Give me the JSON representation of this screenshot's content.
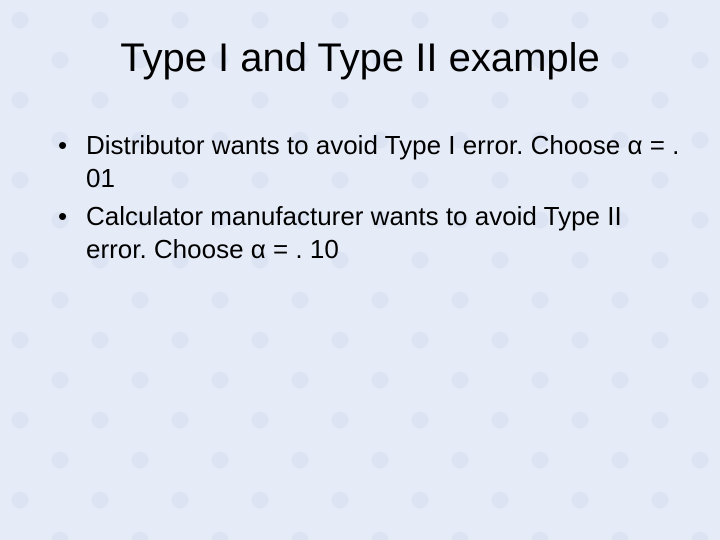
{
  "slide": {
    "title": "Type I and Type II example",
    "bullets": [
      "Distributor wants to avoid Type I error.  Choose α = . 01",
      "Calculator manufacturer wants to avoid Type II error.  Choose α = . 10"
    ]
  },
  "style": {
    "background_color": "#e6ecf7",
    "pattern_color": "#c8d2eb",
    "text_color": "#000000",
    "title_fontsize": 40,
    "body_fontsize": 26,
    "font_family": "Arial"
  }
}
